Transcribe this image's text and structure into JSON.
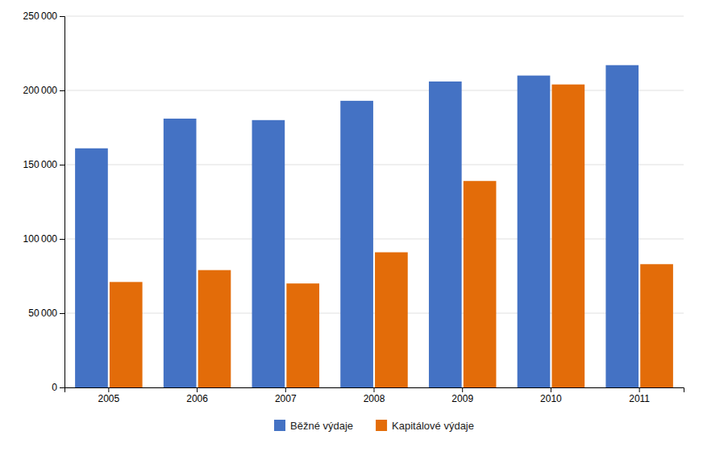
{
  "chart_data": {
    "type": "bar",
    "categories": [
      "2005",
      "2006",
      "2007",
      "2008",
      "2009",
      "2010",
      "2011"
    ],
    "series": [
      {
        "name": "Běžné výdaje",
        "color": "#4472C4",
        "values": [
          161000,
          181000,
          180000,
          193000,
          206000,
          210000,
          217000
        ]
      },
      {
        "name": "Kapitálové výdaje",
        "color": "#E36C09",
        "values": [
          71000,
          79000,
          70000,
          91000,
          139000,
          204000,
          83000
        ]
      }
    ],
    "ylim": [
      0,
      250000
    ],
    "yticks": [
      0,
      {
        "value": 50000,
        "label": "50 000"
      },
      {
        "value": 100000,
        "label": "100 000"
      },
      {
        "value": 150000,
        "label": "150 000"
      },
      {
        "value": 200000,
        "label": "200 000"
      },
      {
        "value": 250000,
        "label": "250 000"
      }
    ],
    "grid": true,
    "legend": "bottom"
  }
}
